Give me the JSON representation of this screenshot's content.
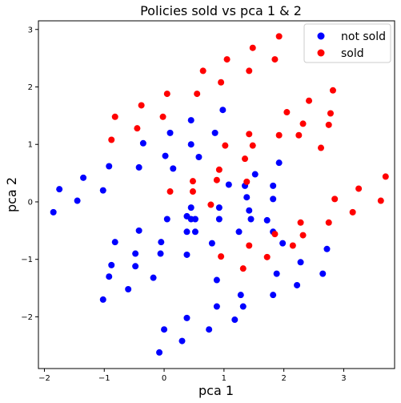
{
  "chart_data": {
    "type": "scatter",
    "title": "Policies sold vs pca 1 & 2",
    "xlabel": "pca 1",
    "ylabel": "pca 2",
    "xlim": [
      -2.1,
      3.85
    ],
    "ylim": [
      -2.9,
      3.15
    ],
    "xticks": [
      -2,
      -1,
      0,
      1,
      2,
      3
    ],
    "yticks": [
      -2,
      -1,
      0,
      1,
      2,
      3
    ],
    "grid": false,
    "legend_position": "top-right",
    "series": [
      {
        "name": "not sold",
        "color": "#0000ff",
        "points": [
          [
            -1.85,
            -0.18
          ],
          [
            -1.75,
            0.22
          ],
          [
            -1.45,
            0.02
          ],
          [
            -1.35,
            0.42
          ],
          [
            -1.02,
            0.2
          ],
          [
            -0.92,
            0.62
          ],
          [
            -0.35,
            1.02
          ],
          [
            -0.42,
            0.6
          ],
          [
            -0.82,
            -0.7
          ],
          [
            -0.42,
            -0.5
          ],
          [
            -0.88,
            -1.1
          ],
          [
            -0.92,
            -1.3
          ],
          [
            -1.02,
            -1.7
          ],
          [
            -0.6,
            -1.52
          ],
          [
            -0.48,
            -0.9
          ],
          [
            -0.48,
            -1.12
          ],
          [
            -0.18,
            -1.32
          ],
          [
            -0.06,
            -0.9
          ],
          [
            -0.05,
            -0.7
          ],
          [
            0.05,
            -0.3
          ],
          [
            0.02,
            0.8
          ],
          [
            0.1,
            1.2
          ],
          [
            0.15,
            0.58
          ],
          [
            0.45,
            1.42
          ],
          [
            0.45,
            1.0
          ],
          [
            0.58,
            0.78
          ],
          [
            0.85,
            1.2
          ],
          [
            0.98,
            1.6
          ],
          [
            0.45,
            -0.1
          ],
          [
            0.52,
            -0.3
          ],
          [
            0.38,
            -0.25
          ],
          [
            0.38,
            -0.52
          ],
          [
            0.52,
            -0.52
          ],
          [
            0.45,
            -0.3
          ],
          [
            0.38,
            -0.92
          ],
          [
            0.8,
            -0.72
          ],
          [
            0.92,
            -0.1
          ],
          [
            0.92,
            -0.3
          ],
          [
            1.08,
            0.3
          ],
          [
            1.35,
            0.28
          ],
          [
            1.38,
            0.08
          ],
          [
            1.42,
            -0.15
          ],
          [
            1.45,
            -0.3
          ],
          [
            1.52,
            0.48
          ],
          [
            1.72,
            -0.32
          ],
          [
            1.82,
            0.05
          ],
          [
            1.82,
            0.28
          ],
          [
            1.92,
            0.68
          ],
          [
            1.25,
            -0.52
          ],
          [
            0.88,
            -1.36
          ],
          [
            0.88,
            -1.82
          ],
          [
            1.28,
            -1.62
          ],
          [
            1.32,
            -1.82
          ],
          [
            1.18,
            -2.05
          ],
          [
            0.38,
            -2.02
          ],
          [
            0.3,
            -2.42
          ],
          [
            0.75,
            -2.22
          ],
          [
            0.0,
            -2.22
          ],
          [
            -0.08,
            -2.62
          ],
          [
            1.82,
            -1.62
          ],
          [
            1.88,
            -1.25
          ],
          [
            2.22,
            -1.45
          ],
          [
            2.28,
            -1.05
          ],
          [
            2.65,
            -1.25
          ],
          [
            2.72,
            -0.82
          ],
          [
            1.82,
            -0.52
          ],
          [
            1.98,
            -0.72
          ]
        ]
      },
      {
        "name": "sold",
        "color": "#ff0000",
        "points": [
          [
            -0.88,
            1.08
          ],
          [
            -0.82,
            1.48
          ],
          [
            -0.45,
            1.28
          ],
          [
            -0.38,
            1.68
          ],
          [
            -0.02,
            1.48
          ],
          [
            0.05,
            1.88
          ],
          [
            0.55,
            1.88
          ],
          [
            0.65,
            2.28
          ],
          [
            0.95,
            2.08
          ],
          [
            1.05,
            2.48
          ],
          [
            1.42,
            2.28
          ],
          [
            1.48,
            2.68
          ],
          [
            1.85,
            2.48
          ],
          [
            1.92,
            2.88
          ],
          [
            0.1,
            0.18
          ],
          [
            0.48,
            0.18
          ],
          [
            0.48,
            0.36
          ],
          [
            0.78,
            -0.05
          ],
          [
            0.88,
            0.38
          ],
          [
            0.92,
            0.56
          ],
          [
            1.02,
            0.98
          ],
          [
            1.35,
            0.75
          ],
          [
            1.38,
            0.35
          ],
          [
            1.42,
            1.18
          ],
          [
            1.48,
            0.98
          ],
          [
            1.92,
            1.16
          ],
          [
            2.05,
            1.56
          ],
          [
            2.25,
            1.16
          ],
          [
            2.32,
            1.36
          ],
          [
            2.42,
            1.76
          ],
          [
            2.62,
            0.94
          ],
          [
            2.75,
            1.34
          ],
          [
            2.78,
            1.54
          ],
          [
            2.82,
            1.94
          ],
          [
            2.85,
            0.05
          ],
          [
            2.75,
            -0.36
          ],
          [
            2.28,
            -0.36
          ],
          [
            2.32,
            -0.58
          ],
          [
            2.15,
            -0.76
          ],
          [
            1.85,
            -0.56
          ],
          [
            1.72,
            -0.96
          ],
          [
            1.42,
            -0.76
          ],
          [
            1.32,
            -1.16
          ],
          [
            0.95,
            -0.95
          ],
          [
            3.15,
            -0.18
          ],
          [
            3.25,
            0.23
          ],
          [
            3.62,
            0.02
          ],
          [
            3.7,
            0.44
          ]
        ]
      }
    ]
  }
}
